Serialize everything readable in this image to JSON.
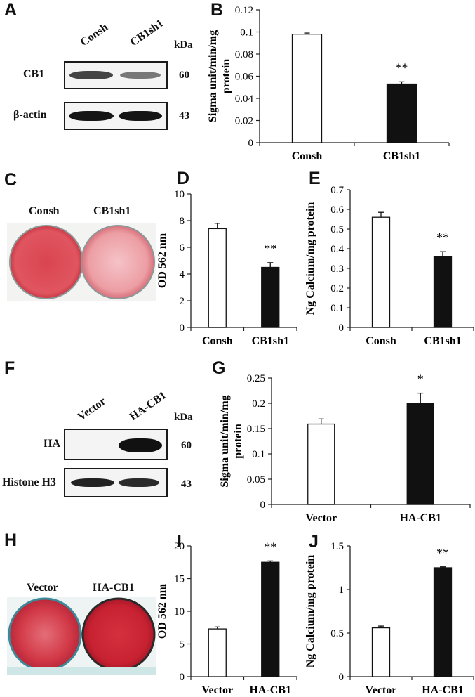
{
  "panels": {
    "A": {
      "label": "A",
      "lanes": [
        "Consh",
        "CB1sh1"
      ],
      "kda_label": "kDa",
      "rows": [
        {
          "name": "CB1",
          "kda": "60"
        },
        {
          "name": "β-actin",
          "kda": "43"
        }
      ]
    },
    "C": {
      "label": "C",
      "dishes": [
        "Consh",
        "CB1sh1"
      ]
    },
    "F": {
      "label": "F",
      "lanes": [
        "Vector",
        "HA-CB1"
      ],
      "kda_label": "kDa",
      "rows": [
        {
          "name": "HA",
          "kda": "60"
        },
        {
          "name": "Histone H3",
          "kda": "43"
        }
      ]
    },
    "H": {
      "label": "H",
      "dishes": [
        "Vector",
        "HA-CB1"
      ]
    }
  },
  "colors": {
    "control_bar": "#ffffff",
    "treated_bar": "#111111",
    "dish_red": "#d9404a",
    "dish_light": "#eea0a6"
  },
  "chart_data": [
    {
      "id": "B",
      "label": "B",
      "type": "bar",
      "categories": [
        "Consh",
        "CB1sh1"
      ],
      "values": [
        0.098,
        0.053
      ],
      "errors": [
        0.001,
        0.002
      ],
      "ylabel_lines": [
        "Sigma unit/min/mg",
        "protein"
      ],
      "ylim": [
        0,
        0.12
      ],
      "ticks": [
        "0",
        "0.02",
        "0.04",
        "0.06",
        "0.08",
        "0.1",
        "0.12"
      ],
      "significance": [
        "",
        "**"
      ]
    },
    {
      "id": "D",
      "label": "D",
      "type": "bar",
      "categories": [
        "Consh",
        "CB1sh1"
      ],
      "values": [
        7.4,
        4.5
      ],
      "errors": [
        0.4,
        0.35
      ],
      "ylabel_lines": [
        "OD 562 nm"
      ],
      "ylim": [
        0,
        10
      ],
      "ticks": [
        "0",
        "2",
        "4",
        "6",
        "8",
        "10"
      ],
      "significance": [
        "",
        "**"
      ]
    },
    {
      "id": "E",
      "label": "E",
      "type": "bar",
      "categories": [
        "Consh",
        "CB1sh1"
      ],
      "values": [
        0.56,
        0.36
      ],
      "errors": [
        0.025,
        0.025
      ],
      "ylabel_lines": [
        "Ng Calcium/mg protein"
      ],
      "ylim": [
        0,
        0.7
      ],
      "ticks": [
        "0",
        "0.1",
        "0.2",
        "0.3",
        "0.4",
        "0.5",
        "0.6",
        "0.7"
      ],
      "significance": [
        "",
        "**"
      ]
    },
    {
      "id": "G",
      "label": "G",
      "type": "bar",
      "categories": [
        "Vector",
        "HA-CB1"
      ],
      "values": [
        0.159,
        0.2
      ],
      "errors": [
        0.01,
        0.02
      ],
      "ylabel_lines": [
        "Sigma unit/min/mg",
        "protein"
      ],
      "ylim": [
        0,
        0.25
      ],
      "ticks": [
        "0",
        "0.05",
        "0.1",
        "0.15",
        "0.2",
        "0.25"
      ],
      "significance": [
        "",
        "*"
      ]
    },
    {
      "id": "I",
      "label": "I",
      "type": "bar",
      "categories": [
        "Vector",
        "HA-CB1"
      ],
      "values": [
        7.3,
        17.5
      ],
      "errors": [
        0.3,
        0.2
      ],
      "ylabel_lines": [
        "OD 562 nm"
      ],
      "ylim": [
        0,
        20
      ],
      "ticks": [
        "0",
        "5",
        "10",
        "15",
        "20"
      ],
      "significance": [
        "",
        "**"
      ]
    },
    {
      "id": "J",
      "label": "J",
      "type": "bar",
      "categories": [
        "Vector",
        "HA-CB1"
      ],
      "values": [
        0.56,
        1.25
      ],
      "errors": [
        0.02,
        0.01
      ],
      "ylabel_lines": [
        "Ng Calcium/mg protein"
      ],
      "ylim": [
        0,
        1.5
      ],
      "ticks": [
        "0",
        "0.5",
        "1",
        "1.5"
      ],
      "significance": [
        "",
        "**"
      ]
    }
  ]
}
